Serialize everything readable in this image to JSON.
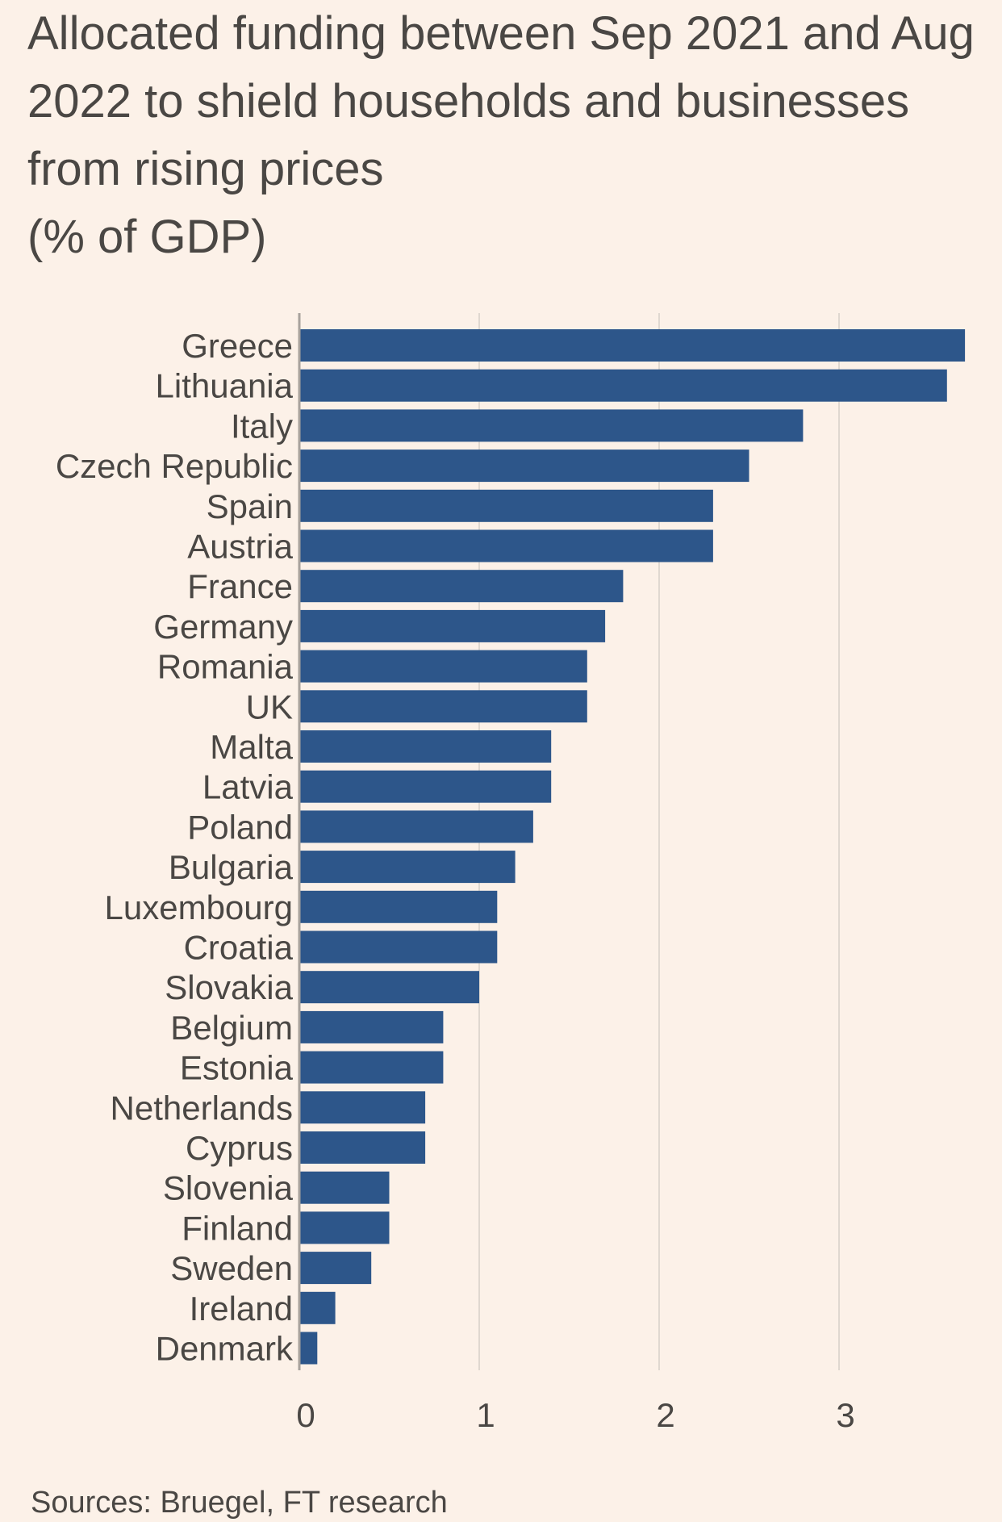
{
  "chart_data": {
    "type": "bar",
    "orientation": "horizontal",
    "title": "Allocated funding between Sep 2021 and Aug 2022 to shield households and businesses from rising prices",
    "subtitle": "(% of GDP)",
    "categories": [
      "Greece",
      "Lithuania",
      "Italy",
      "Czech Republic",
      "Spain",
      "Austria",
      "France",
      "Germany",
      "Romania",
      "UK",
      "Malta",
      "Latvia",
      "Poland",
      "Bulgaria",
      "Luxembourg",
      "Croatia",
      "Slovakia",
      "Belgium",
      "Estonia",
      "Netherlands",
      "Cyprus",
      "Slovenia",
      "Finland",
      "Sweden",
      "Ireland",
      "Denmark"
    ],
    "values": [
      3.7,
      3.6,
      2.8,
      2.5,
      2.3,
      2.3,
      1.8,
      1.7,
      1.6,
      1.6,
      1.4,
      1.4,
      1.3,
      1.2,
      1.1,
      1.1,
      1.0,
      0.8,
      0.8,
      0.7,
      0.7,
      0.5,
      0.5,
      0.4,
      0.2,
      0.1
    ],
    "x_ticks": [
      "0",
      "1",
      "2",
      "3"
    ],
    "xlim": [
      0,
      3.7
    ],
    "grid": "vertical",
    "source": "Sources: Bruegel, FT research",
    "colors": {
      "bar": "#2d568a",
      "grid": "#e0d8d0",
      "axis": "#a8a29d",
      "background": "#fcf1e8",
      "text": "#4a4744"
    }
  }
}
